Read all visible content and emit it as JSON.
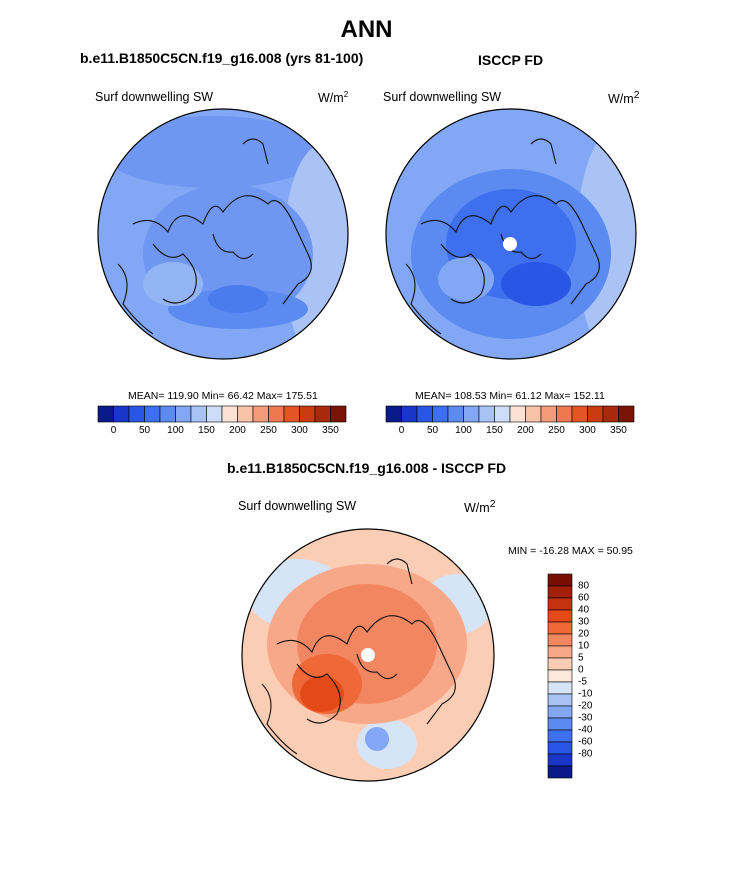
{
  "figure": {
    "title": "ANN",
    "panel_left_title": "b.e11.B1850C5CN.f19_g16.008 (yrs 81-100)",
    "panel_right_title": "ISCCP FD",
    "panel_bottom_title": "b.e11.B1850C5CN.f19_g16.008 - ISCCP FD",
    "variable_label": "Surf downwelling SW",
    "units": "W/m",
    "units_sup": "2"
  },
  "colors": {
    "seq": [
      "#0a1a88",
      "#1a36c8",
      "#2a56e6",
      "#3d6fee",
      "#5b8af0",
      "#82a7f4",
      "#a9c3f7",
      "#cfdcf8",
      "#fde1d2",
      "#f8c3a8",
      "#f49c78",
      "#ee7850",
      "#e55424",
      "#cc3a14",
      "#a82a0c",
      "#7a1406"
    ],
    "div": [
      "#0a1a88",
      "#1a36c8",
      "#2a56e6",
      "#3d6fee",
      "#5b8af0",
      "#82a7f4",
      "#a9c3f7",
      "#d6e4f8",
      "#fde8dc",
      "#fbcdb4",
      "#f7a888",
      "#f28660",
      "#ee6838",
      "#e44a18",
      "#c63210",
      "#a22008",
      "#760e02"
    ]
  },
  "chart_data": [
    {
      "type": "heatmap",
      "title": "b.e11.B1850C5CN.f19_g16.008 (yrs 81-100)",
      "variable": "Surf downwelling SW",
      "units": "W/m2",
      "stats": {
        "mean": 119.9,
        "min": 66.42,
        "max": 175.51
      },
      "stats_text": "MEAN= 119.90  Min=  66.42  Max= 175.51",
      "colorbar_ticks": [
        "0",
        "50",
        "100",
        "150",
        "200",
        "250",
        "300",
        "350"
      ]
    },
    {
      "type": "heatmap",
      "title": "ISCCP FD",
      "variable": "Surf downwelling SW",
      "units": "W/m2",
      "stats": {
        "mean": 108.53,
        "min": 61.12,
        "max": 152.11
      },
      "stats_text": "MEAN= 108.53  Min=  61.12  Max= 152.11",
      "colorbar_ticks": [
        "0",
        "50",
        "100",
        "150",
        "200",
        "250",
        "300",
        "350"
      ]
    },
    {
      "type": "heatmap",
      "title": "b.e11.B1850C5CN.f19_g16.008 - ISCCP FD",
      "variable": "Surf downwelling SW",
      "units": "W/m2",
      "stats": {
        "min": -16.28,
        "max": 50.95
      },
      "stats_text": "MIN = -16.28 MAX =  50.95",
      "colorbar_ticks": [
        "80",
        "60",
        "40",
        "30",
        "20",
        "10",
        "5",
        "0",
        "-5",
        "-10",
        "-20",
        "-30",
        "-40",
        "-60",
        "-80"
      ]
    }
  ]
}
